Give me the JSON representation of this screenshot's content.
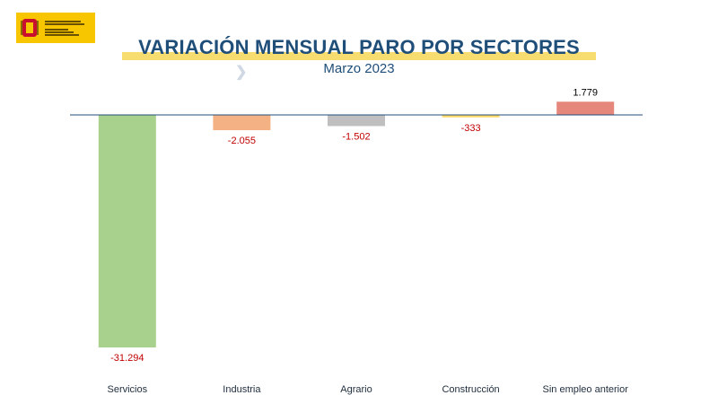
{
  "logo": {
    "name": "logo-ministerio",
    "text": "VICEPRESIDENCIA SEGUNDA DEL GOBIERNO · MINISTERIO DE TRABAJO Y ECONOMÍA SOCIAL"
  },
  "header": {
    "title": "VARIACIÓN MENSUAL PARO POR SECTORES",
    "subtitle": "Marzo 2023"
  },
  "colors": {
    "title": "#1f4e79",
    "baseline": "#1f4e79",
    "negative_label": "#c00000",
    "positive_label": "#000000"
  },
  "chart_data": {
    "type": "bar",
    "title": "VARIACIÓN MENSUAL PARO POR SECTORES",
    "subtitle": "Marzo 2023",
    "categories": [
      "Servicios",
      "Industria",
      "Agrario",
      "Construcción",
      "Sin empleo anterior"
    ],
    "values": [
      -31294,
      -2055,
      -1502,
      -333,
      1779
    ],
    "value_labels": [
      "-31.294",
      "-2.055",
      "-1.502",
      "-333",
      "1.779"
    ],
    "bar_colors": [
      "#a9d18e",
      "#f4b183",
      "#bfbfbf",
      "#ffd966",
      "#e6877c"
    ],
    "xlabel": "",
    "ylabel": "",
    "ylim": [
      -32000,
      2000
    ],
    "grid": false,
    "legend": "none"
  }
}
